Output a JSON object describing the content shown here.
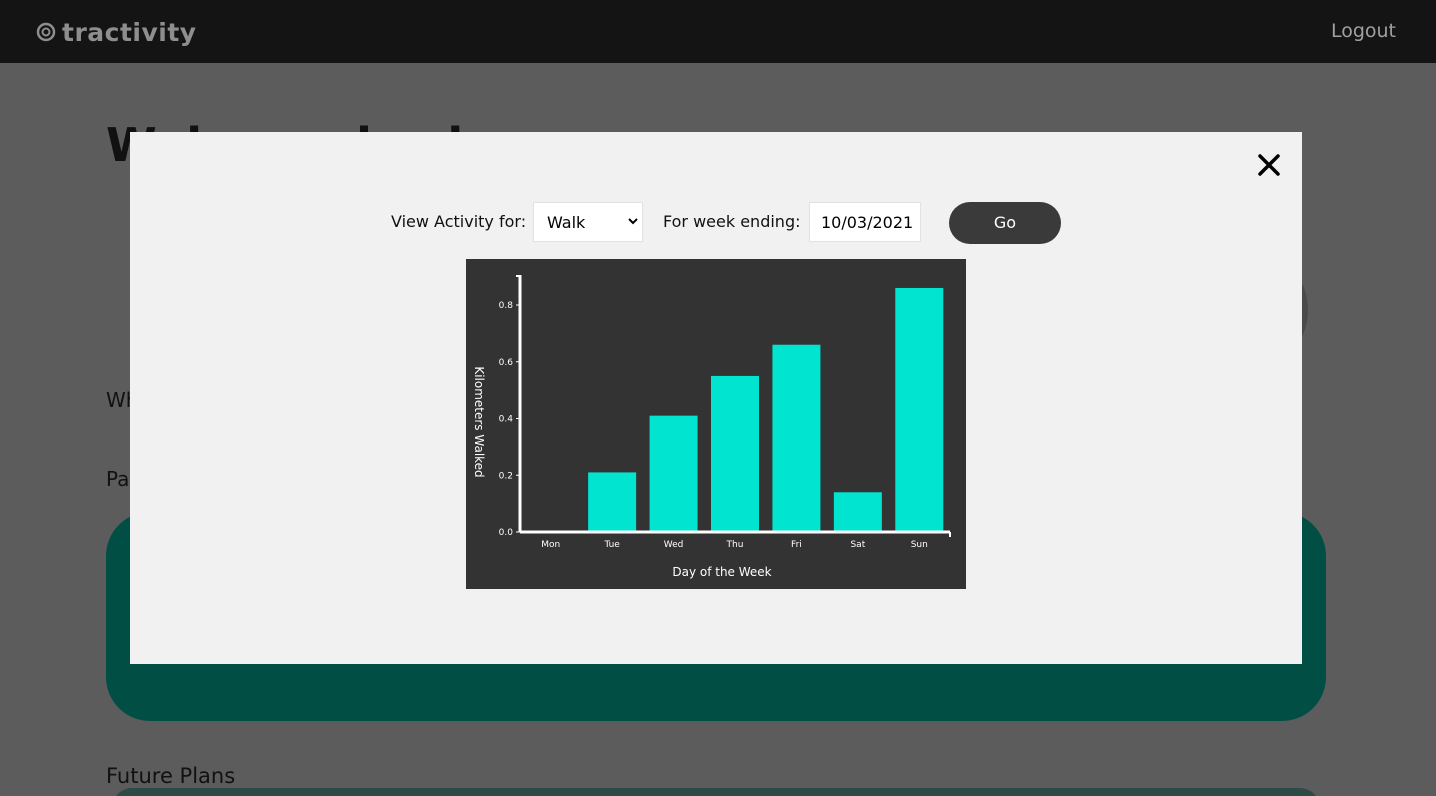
{
  "navbar": {
    "logo": "tractivity",
    "logout_label": "Logout"
  },
  "background": {
    "welcome_text": "Welcome back",
    "what_text": "Wh",
    "past_text": "Pa",
    "future_text": "Future Plans"
  },
  "modal": {
    "view_label": "View Activity for:",
    "activity_selected": "Walk",
    "week_label": "For week ending:",
    "week_value": "10/03/2021",
    "go_label": "Go"
  },
  "colors": {
    "bar": "#00e4d0",
    "chart_bg": "#333333",
    "panel": "#004e44"
  },
  "chart_data": {
    "type": "bar",
    "categories": [
      "Mon",
      "Tue",
      "Wed",
      "Thu",
      "Fri",
      "Sat",
      "Sun"
    ],
    "values": [
      0,
      0.21,
      0.41,
      0.55,
      0.66,
      0.14,
      0.86
    ],
    "xlabel": "Day of the Week",
    "ylabel": "Kilometers Walked",
    "yticks": [
      "0.0",
      "0.2",
      "0.4",
      "0.6",
      "0.8"
    ],
    "ylim": [
      0,
      0.9
    ],
    "grid": false
  }
}
